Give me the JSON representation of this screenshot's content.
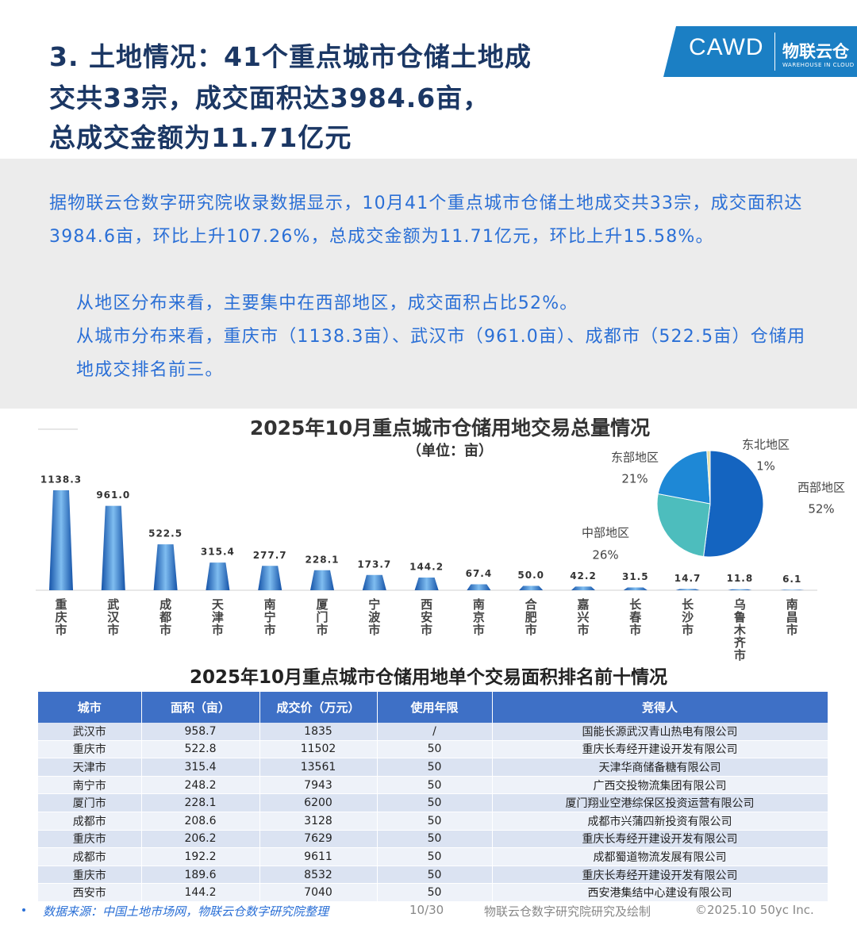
{
  "header": {
    "title_lines": [
      "3. 土地情况：41个重点城市仓储土地成",
      "交共33宗，成交面积达3984.6亩，",
      "总成交金额为11.71亿元"
    ]
  },
  "logo": {
    "name": "CAWD",
    "brand": "物联云仓",
    "sub": "WAREHOUSE IN CLOUD"
  },
  "intro": {
    "paragraph": "据物联云仓数字研究院收录数据显示，10月41个重点城市仓储土地成交共33宗，成交面积达3984.6亩，环比上升107.26%，总成交金额为11.71亿元，环比上升15.58%。",
    "bullets": [
      "从地区分布来看，主要集中在西部地区，成交面积占比52%。",
      "从城市分布来看，重庆市（1138.3亩）、武汉市（961.0亩）、成都市（522.5亩）仓储用地成交排名前三。"
    ]
  },
  "chart_data": [
    {
      "type": "bar",
      "title": "2025年10月重点城市仓储用地交易总量情况",
      "subtitle": "（单位：亩）",
      "categories": [
        "重庆市",
        "武汉市",
        "成都市",
        "天津市",
        "南宁市",
        "厦门市",
        "宁波市",
        "西安市",
        "南京市",
        "合肥市",
        "嘉兴市",
        "长春市",
        "长沙市",
        "乌鲁木齐市",
        "南昌市"
      ],
      "values": [
        1138.3,
        961.0,
        522.5,
        315.4,
        277.7,
        228.1,
        173.7,
        144.2,
        67.4,
        50.0,
        42.2,
        31.5,
        14.7,
        11.8,
        6.1
      ],
      "value_labels": [
        "1138.3",
        "961.0",
        "522.5",
        "315.4",
        "277.7",
        "228.1",
        "173.7",
        "144.2",
        "67.4",
        "50.0",
        "42.2",
        "31.5",
        "14.7",
        "11.8",
        "6.1"
      ],
      "color": "#1a5fb4"
    },
    {
      "type": "pie",
      "categories": [
        "西部地区",
        "中部地区",
        "东部地区",
        "东北地区"
      ],
      "values": [
        52,
        26,
        21,
        1
      ],
      "value_labels": [
        "52%",
        "26%",
        "21%",
        "1%"
      ],
      "colors": [
        "#1464c0",
        "#4dbdbd",
        "#1e88d6",
        "#e6dfa2"
      ]
    }
  ],
  "table": {
    "title": "2025年10月重点城市仓储用地单个交易面积排名前十情况",
    "header": [
      "城市",
      "面积（亩）",
      "成交价（万元）",
      "使用年限",
      "竞得人"
    ],
    "rows": [
      [
        "武汉市",
        "958.7",
        "1835",
        "/",
        "国能长源武汉青山热电有限公司"
      ],
      [
        "重庆市",
        "522.8",
        "11502",
        "50",
        "重庆长寿经开建设开发有限公司"
      ],
      [
        "天津市",
        "315.4",
        "13561",
        "50",
        "天津华商储备糖有限公司"
      ],
      [
        "南宁市",
        "248.2",
        "7943",
        "50",
        "广西交投物流集团有限公司"
      ],
      [
        "厦门市",
        "228.1",
        "6200",
        "50",
        "厦门翔业空港综保区投资运营有限公司"
      ],
      [
        "成都市",
        "208.6",
        "3128",
        "50",
        "成都市兴蒲四新投资有限公司"
      ],
      [
        "重庆市",
        "206.2",
        "7629",
        "50",
        "重庆长寿经开建设开发有限公司"
      ],
      [
        "成都市",
        "192.2",
        "9611",
        "50",
        "成都蜀道物流发展有限公司"
      ],
      [
        "重庆市",
        "189.6",
        "8532",
        "50",
        "重庆长寿经开建设开发有限公司"
      ],
      [
        "西安市",
        "144.2",
        "7040",
        "50",
        "西安港集结中心建设有限公司"
      ]
    ]
  },
  "footer": {
    "source": "数据来源：中国土地市场网，物联云仓数字研究院整理",
    "page": "10/30",
    "credit": "物联云仓数字研究院研究及绘制",
    "copyright": "©2025.10 50yc Inc."
  }
}
